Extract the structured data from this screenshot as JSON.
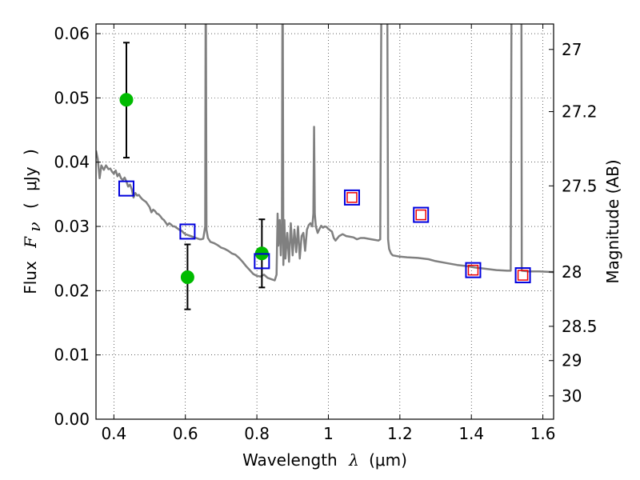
{
  "chart_data": {
    "type": "scatter",
    "xlabel": {
      "prefix": "Wavelength",
      "symbol": "λ",
      "unit": "(μm)"
    },
    "ylabel": {
      "prefix": "Flux",
      "symbol": "F",
      "subscript": "ν",
      "unit_open": "(",
      "unit": "μJy",
      "unit_close": ")"
    },
    "y2label": "Magnitude (AB)",
    "xlim": [
      0.35,
      1.63
    ],
    "ylim": [
      0.0,
      0.0615
    ],
    "xticks": [
      {
        "value": 0.4,
        "label": "0.4"
      },
      {
        "value": 0.6,
        "label": "0.6"
      },
      {
        "value": 0.8,
        "label": "0.8"
      },
      {
        "value": 1.0,
        "label": "1"
      },
      {
        "value": 1.2,
        "label": "1.2"
      },
      {
        "value": 1.4,
        "label": "1.4"
      },
      {
        "value": 1.6,
        "label": "1.6"
      }
    ],
    "yticks": [
      {
        "value": 0.0,
        "label": "0.00"
      },
      {
        "value": 0.01,
        "label": "0.01"
      },
      {
        "value": 0.02,
        "label": "0.02"
      },
      {
        "value": 0.03,
        "label": "0.03"
      },
      {
        "value": 0.04,
        "label": "0.04"
      },
      {
        "value": 0.05,
        "label": "0.05"
      },
      {
        "value": 0.06,
        "label": "0.06"
      }
    ],
    "y2ticks": [
      {
        "value": 27.0,
        "label": "27"
      },
      {
        "value": 27.2,
        "label": "27.2"
      },
      {
        "value": 27.5,
        "label": "27.5"
      },
      {
        "value": 28.0,
        "label": "28"
      },
      {
        "value": 28.5,
        "label": "28.5"
      },
      {
        "value": 29.0,
        "label": "29"
      },
      {
        "value": 30.0,
        "label": "30"
      }
    ],
    "grid": true,
    "colors": {
      "template": "#808080",
      "observed": "#00bb00",
      "model_box": "#0000dd",
      "model_inner": "#ee0000",
      "errorbar": "#000000"
    },
    "series": [
      {
        "kind": "line",
        "points": [
          [
            0.35,
            0.0418
          ],
          [
            0.355,
            0.0405
          ],
          [
            0.36,
            0.0375
          ],
          [
            0.365,
            0.0395
          ],
          [
            0.372,
            0.0388
          ],
          [
            0.378,
            0.0395
          ],
          [
            0.385,
            0.0389
          ],
          [
            0.39,
            0.039
          ],
          [
            0.395,
            0.0385
          ],
          [
            0.4,
            0.0382
          ],
          [
            0.405,
            0.0387
          ],
          [
            0.41,
            0.0378
          ],
          [
            0.415,
            0.0382
          ],
          [
            0.42,
            0.0375
          ],
          [
            0.425,
            0.0372
          ],
          [
            0.43,
            0.0376
          ],
          [
            0.435,
            0.037
          ],
          [
            0.44,
            0.0362
          ],
          [
            0.445,
            0.0365
          ],
          [
            0.45,
            0.0358
          ],
          [
            0.455,
            0.0345
          ],
          [
            0.46,
            0.0352
          ],
          [
            0.465,
            0.0348
          ],
          [
            0.47,
            0.0349
          ],
          [
            0.475,
            0.0345
          ],
          [
            0.48,
            0.0342
          ],
          [
            0.485,
            0.034
          ],
          [
            0.49,
            0.0338
          ],
          [
            0.495,
            0.0334
          ],
          [
            0.5,
            0.033
          ],
          [
            0.505,
            0.0322
          ],
          [
            0.51,
            0.0326
          ],
          [
            0.515,
            0.0324
          ],
          [
            0.52,
            0.032
          ],
          [
            0.525,
            0.0319
          ],
          [
            0.53,
            0.0316
          ],
          [
            0.535,
            0.0312
          ],
          [
            0.54,
            0.031
          ],
          [
            0.545,
            0.0306
          ],
          [
            0.55,
            0.0302
          ],
          [
            0.555,
            0.0305
          ],
          [
            0.56,
            0.0303
          ],
          [
            0.565,
            0.03
          ],
          [
            0.57,
            0.03
          ],
          [
            0.575,
            0.0298
          ],
          [
            0.58,
            0.0296
          ],
          [
            0.585,
            0.0294
          ],
          [
            0.59,
            0.0293
          ],
          [
            0.595,
            0.029
          ],
          [
            0.6,
            0.0288
          ],
          [
            0.605,
            0.0287
          ],
          [
            0.61,
            0.0286
          ],
          [
            0.615,
            0.0285
          ],
          [
            0.62,
            0.0284
          ],
          [
            0.625,
            0.0283
          ],
          [
            0.63,
            0.0282
          ],
          [
            0.635,
            0.0281
          ],
          [
            0.64,
            0.028
          ],
          [
            0.645,
            0.028
          ],
          [
            0.65,
            0.0281
          ],
          [
            0.6555,
            0.03
          ],
          [
            0.6565,
            0.062
          ],
          [
            0.6575,
            0.062
          ],
          [
            0.659,
            0.0295
          ],
          [
            0.663,
            0.0282
          ],
          [
            0.67,
            0.0276
          ],
          [
            0.68,
            0.0274
          ],
          [
            0.69,
            0.0271
          ],
          [
            0.7,
            0.0267
          ],
          [
            0.71,
            0.0265
          ],
          [
            0.72,
            0.0262
          ],
          [
            0.73,
            0.0258
          ],
          [
            0.74,
            0.0256
          ],
          [
            0.75,
            0.0251
          ],
          [
            0.76,
            0.0245
          ],
          [
            0.77,
            0.0238
          ],
          [
            0.78,
            0.0232
          ],
          [
            0.79,
            0.0226
          ],
          [
            0.8,
            0.0223
          ],
          [
            0.81,
            0.0222
          ],
          [
            0.82,
            0.0225
          ],
          [
            0.83,
            0.022
          ],
          [
            0.84,
            0.0218
          ],
          [
            0.85,
            0.0216
          ],
          [
            0.855,
            0.0225
          ],
          [
            0.858,
            0.032
          ],
          [
            0.86,
            0.027
          ],
          [
            0.864,
            0.031
          ],
          [
            0.867,
            0.0255
          ],
          [
            0.87,
            0.03
          ],
          [
            0.8715,
            0.062
          ],
          [
            0.8725,
            0.062
          ],
          [
            0.874,
            0.024
          ],
          [
            0.877,
            0.031
          ],
          [
            0.88,
            0.025
          ],
          [
            0.885,
            0.029
          ],
          [
            0.89,
            0.0245
          ],
          [
            0.895,
            0.0305
          ],
          [
            0.9,
            0.0255
          ],
          [
            0.905,
            0.0295
          ],
          [
            0.91,
            0.026
          ],
          [
            0.915,
            0.03
          ],
          [
            0.92,
            0.025
          ],
          [
            0.925,
            0.0285
          ],
          [
            0.93,
            0.029
          ],
          [
            0.935,
            0.0262
          ],
          [
            0.94,
            0.0295
          ],
          [
            0.945,
            0.0302
          ],
          [
            0.95,
            0.0305
          ],
          [
            0.955,
            0.03
          ],
          [
            0.958,
            0.032
          ],
          [
            0.96,
            0.0455
          ],
          [
            0.962,
            0.032
          ],
          [
            0.965,
            0.03
          ],
          [
            0.97,
            0.029
          ],
          [
            0.975,
            0.0296
          ],
          [
            0.98,
            0.0301
          ],
          [
            0.985,
            0.0298
          ],
          [
            0.99,
            0.03
          ],
          [
            0.995,
            0.0299
          ],
          [
            1.0,
            0.0296
          ],
          [
            1.01,
            0.0292
          ],
          [
            1.015,
            0.0282
          ],
          [
            1.02,
            0.0278
          ],
          [
            1.03,
            0.0285
          ],
          [
            1.04,
            0.0288
          ],
          [
            1.05,
            0.0285
          ],
          [
            1.06,
            0.0284
          ],
          [
            1.07,
            0.0283
          ],
          [
            1.08,
            0.028
          ],
          [
            1.09,
            0.0282
          ],
          [
            1.1,
            0.0282
          ],
          [
            1.12,
            0.028
          ],
          [
            1.13,
            0.0279
          ],
          [
            1.14,
            0.0278
          ],
          [
            1.145,
            0.028
          ],
          [
            1.148,
            0.062
          ],
          [
            1.152,
            0.062
          ],
          [
            1.165,
            0.062
          ],
          [
            1.167,
            0.028
          ],
          [
            1.17,
            0.0265
          ],
          [
            1.175,
            0.0258
          ],
          [
            1.18,
            0.0255
          ],
          [
            1.2,
            0.0253
          ],
          [
            1.22,
            0.0252
          ],
          [
            1.25,
            0.0251
          ],
          [
            1.28,
            0.0249
          ],
          [
            1.3,
            0.0246
          ],
          [
            1.33,
            0.0243
          ],
          [
            1.36,
            0.024
          ],
          [
            1.39,
            0.0238
          ],
          [
            1.41,
            0.0236
          ],
          [
            1.44,
            0.0234
          ],
          [
            1.47,
            0.0232
          ],
          [
            1.5,
            0.0231
          ],
          [
            1.51,
            0.0231
          ],
          [
            1.512,
            0.062
          ],
          [
            1.535,
            0.062
          ],
          [
            1.54,
            0.062
          ],
          [
            1.541,
            0.0231
          ],
          [
            1.56,
            0.023
          ],
          [
            1.59,
            0.023
          ],
          [
            1.63,
            0.0229
          ]
        ]
      },
      {
        "kind": "errorbar",
        "points": [
          {
            "x": 0.435,
            "y": 0.0497,
            "ylo": 0.0407,
            "yhi": 0.0586
          },
          {
            "x": 0.606,
            "y": 0.0221,
            "ylo": 0.0171,
            "yhi": 0.0272
          },
          {
            "x": 0.814,
            "y": 0.0258,
            "ylo": 0.0205,
            "yhi": 0.0311
          }
        ]
      },
      {
        "kind": "model_squares",
        "points": [
          {
            "x": 0.435,
            "y": 0.0359
          },
          {
            "x": 0.606,
            "y": 0.0292
          },
          {
            "x": 0.814,
            "y": 0.0246
          },
          {
            "x": 1.066,
            "y": 0.0345,
            "inner": true
          },
          {
            "x": 1.259,
            "y": 0.0318,
            "inner": true
          },
          {
            "x": 1.405,
            "y": 0.0232,
            "inner": true
          },
          {
            "x": 1.544,
            "y": 0.0224,
            "inner": true
          }
        ]
      }
    ]
  }
}
